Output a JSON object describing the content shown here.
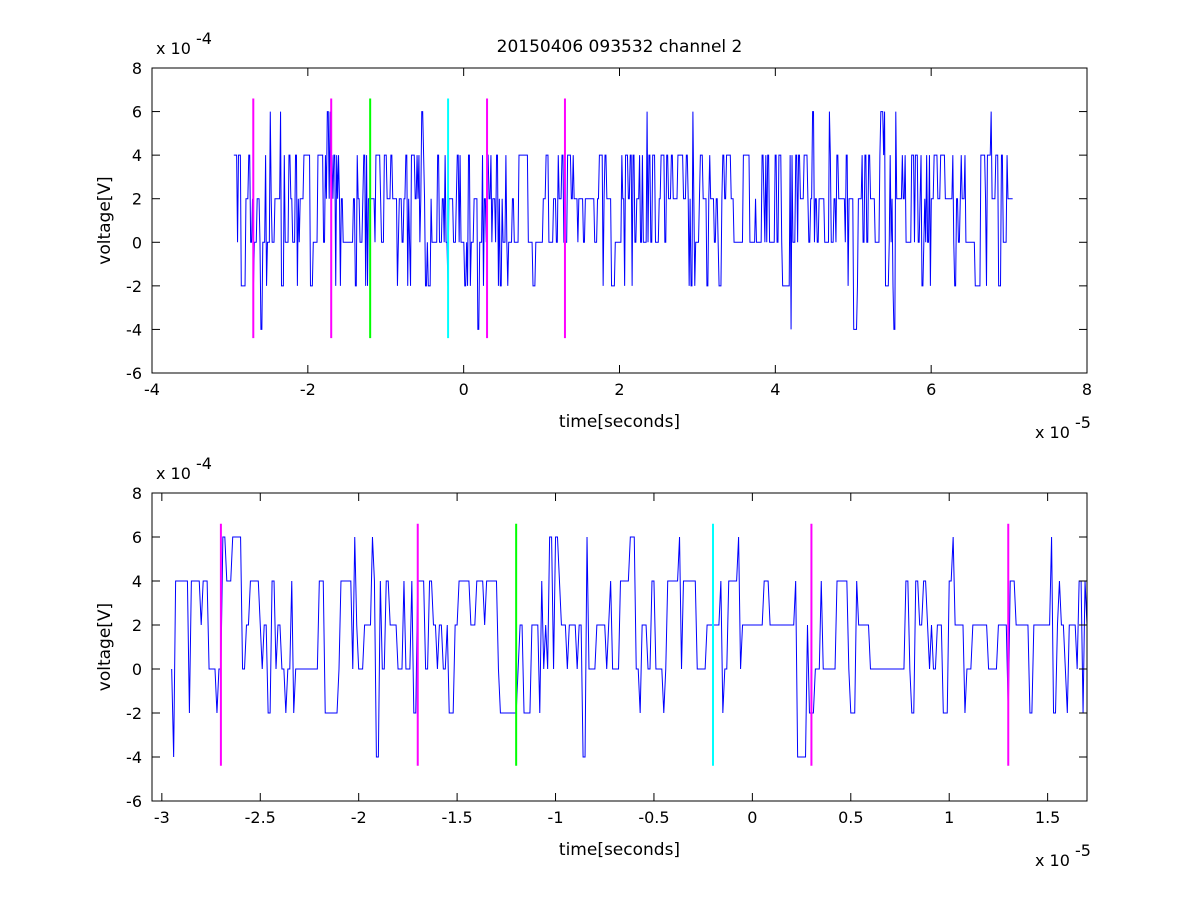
{
  "chart_data": [
    {
      "type": "line",
      "title": "20150406 093532 channel 2",
      "xlabel": "time[seconds]",
      "ylabel": "voltage[V]",
      "x_multiplier": "x 10",
      "x_exponent": "-5",
      "y_multiplier": "x 10",
      "y_exponent": "-4",
      "xlim": [
        -4,
        8
      ],
      "ylim": [
        -6,
        8
      ],
      "xticks": [
        -4,
        -2,
        0,
        2,
        4,
        6,
        8
      ],
      "xtick_labels": [
        "-4",
        "-2",
        "0",
        "2",
        "4",
        "6",
        "8"
      ],
      "yticks": [
        -6,
        -4,
        -2,
        0,
        2,
        4,
        6,
        8
      ],
      "ytick_labels": [
        "-6",
        "-4",
        "-2",
        "0",
        "2",
        "4",
        "6",
        "8"
      ],
      "grid": false,
      "series": [
        {
          "color": "#0000ff",
          "x_range": [
            -2.95,
            7.05
          ],
          "levels": [
            -4,
            -2,
            0,
            2,
            4,
            6
          ],
          "typical_range": [
            0,
            4
          ]
        }
      ],
      "markers": [
        {
          "x": -2.7,
          "color": "#ff00ff",
          "y_range": [
            -4.4,
            6.6
          ]
        },
        {
          "x": -1.7,
          "color": "#ff00ff",
          "y_range": [
            -4.4,
            6.6
          ]
        },
        {
          "x": -1.2,
          "color": "#00ff00",
          "y_range": [
            -4.4,
            6.6
          ]
        },
        {
          "x": -0.2,
          "color": "#00ffff",
          "y_range": [
            -4.4,
            6.6
          ]
        },
        {
          "x": 0.3,
          "color": "#ff00ff",
          "y_range": [
            -4.4,
            6.6
          ]
        },
        {
          "x": 1.3,
          "color": "#ff00ff",
          "y_range": [
            -4.4,
            6.6
          ]
        }
      ]
    },
    {
      "type": "line",
      "title": "",
      "xlabel": "time[seconds]",
      "ylabel": "voltage[V]",
      "x_multiplier": "x 10",
      "x_exponent": "-5",
      "y_multiplier": "x 10",
      "y_exponent": "-4",
      "xlim": [
        -3.05,
        1.7
      ],
      "ylim": [
        -6,
        8
      ],
      "xticks": [
        -3,
        -2.5,
        -2,
        -1.5,
        -1,
        -0.5,
        0,
        0.5,
        1,
        1.5
      ],
      "xtick_labels": [
        "-3",
        "-2.5",
        "-2",
        "-1.5",
        "-1",
        "-0.5",
        "0",
        "0.5",
        "1",
        "1.5"
      ],
      "yticks": [
        -6,
        -4,
        -2,
        0,
        2,
        4,
        6,
        8
      ],
      "ytick_labels": [
        "-6",
        "-4",
        "-2",
        "0",
        "2",
        "4",
        "6",
        "8"
      ],
      "grid": false,
      "series": [
        {
          "color": "#0000ff",
          "x_range": [
            -2.95,
            1.7
          ],
          "levels": [
            -4,
            -2,
            0,
            2,
            4,
            6
          ],
          "typical_range": [
            0,
            4
          ]
        }
      ],
      "markers": [
        {
          "x": -2.7,
          "color": "#ff00ff",
          "y_range": [
            -4.4,
            6.6
          ]
        },
        {
          "x": -1.7,
          "color": "#ff00ff",
          "y_range": [
            -4.4,
            6.6
          ]
        },
        {
          "x": -1.2,
          "color": "#00ff00",
          "y_range": [
            -4.4,
            6.6
          ]
        },
        {
          "x": -0.2,
          "color": "#00ffff",
          "y_range": [
            -4.4,
            6.6
          ]
        },
        {
          "x": 0.3,
          "color": "#ff00ff",
          "y_range": [
            -4.4,
            6.6
          ]
        },
        {
          "x": 1.3,
          "color": "#ff00ff",
          "y_range": [
            -4.4,
            6.6
          ]
        }
      ]
    }
  ]
}
